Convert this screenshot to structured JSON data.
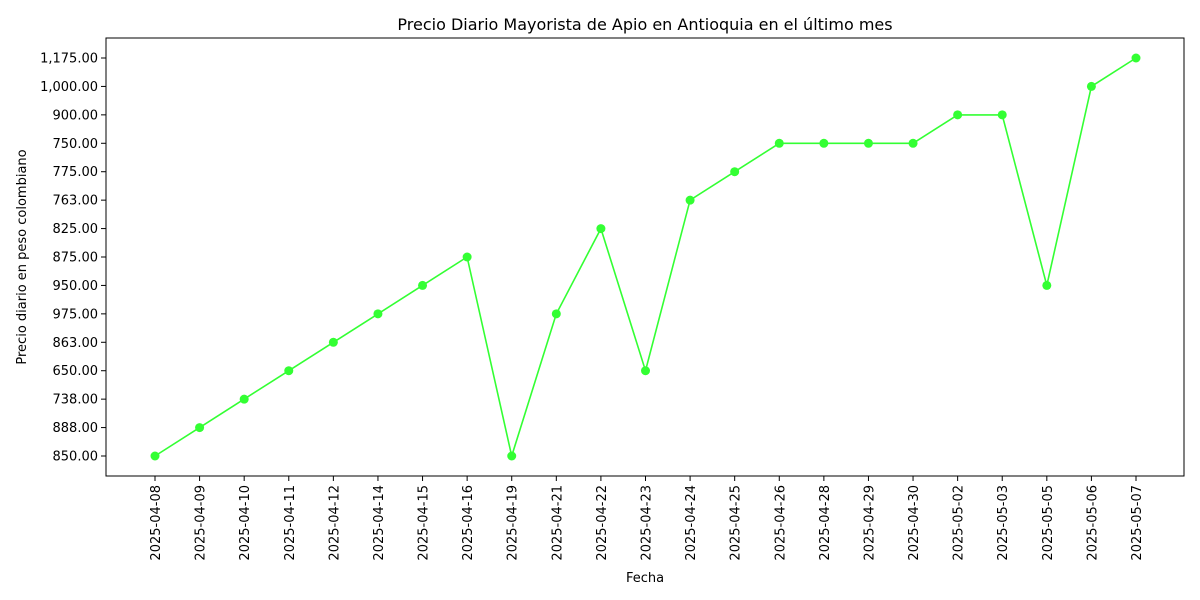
{
  "chart_data": {
    "type": "line",
    "title": "Precio Diario Mayorista de Apio en Antioquia en el último mes",
    "xlabel": "Fecha",
    "ylabel": "Precio diario en peso colombiano",
    "categories": [
      "2025-04-08",
      "2025-04-09",
      "2025-04-10",
      "2025-04-11",
      "2025-04-12",
      "2025-04-14",
      "2025-04-15",
      "2025-04-16",
      "2025-04-19",
      "2025-04-21",
      "2025-04-22",
      "2025-04-23",
      "2025-04-24",
      "2025-04-25",
      "2025-04-26",
      "2025-04-28",
      "2025-04-29",
      "2025-04-30",
      "2025-05-02",
      "2025-05-03",
      "2025-05-05",
      "2025-05-06",
      "2025-05-07"
    ],
    "y_categories": [
      "850.00",
      "888.00",
      "738.00",
      "650.00",
      "863.00",
      "975.00",
      "950.00",
      "875.00",
      "825.00",
      "763.00",
      "775.00",
      "750.00",
      "900.00",
      "1,000.00",
      "1,175.00"
    ],
    "series": [
      {
        "values": [
          "850.00",
          "888.00",
          "738.00",
          "650.00",
          "863.00",
          "975.00",
          "950.00",
          "875.00",
          "850.00",
          "975.00",
          "825.00",
          "650.00",
          "763.00",
          "775.00",
          "750.00",
          "750.00",
          "750.00",
          "750.00",
          "900.00",
          "900.00",
          "950.00",
          "1,000.00",
          "1,175.00"
        ],
        "color": "#33ff33"
      }
    ],
    "grid": false,
    "legend": "none"
  }
}
